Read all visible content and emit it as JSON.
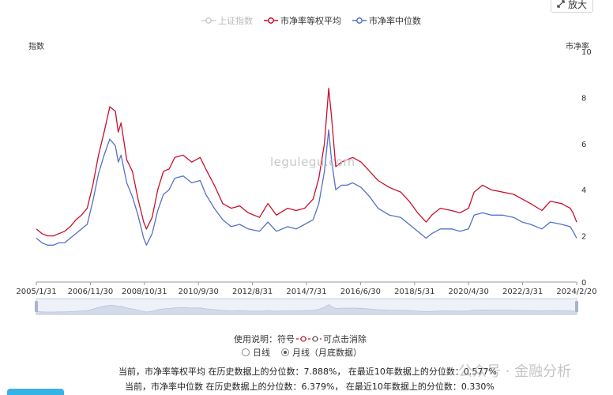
{
  "toolbar": {
    "zoom_label": "放大",
    "zoom_icon": "expand-arrows-icon"
  },
  "legend": [
    {
      "name": "上证指数",
      "color": "#cccccc",
      "active": false
    },
    {
      "name": "市净率等权平均",
      "color": "#c8102e",
      "active": true
    },
    {
      "name": "市净率中位数",
      "color": "#5470c6",
      "active": true
    }
  ],
  "axes": {
    "left_title": "指数",
    "right_title": "市净率"
  },
  "watermark": "legulegu.com",
  "usage": {
    "prefix": "使用说明：符号",
    "suffix": "可点击消除"
  },
  "period": {
    "options": [
      "日线",
      "月线（月底数据）"
    ],
    "selected": 1
  },
  "stats": [
    "当前，市净率等权平均 在历史数据上的分位数：7.888%， 在最近10年数据上的分位数：0.577%",
    "当前，市净率中位数 在历史数据上的分位数：6.379%， 在最近10年数据上的分位数：0.330%"
  ],
  "corner_watermark": "公众号 · 金融分析",
  "chart_data": {
    "type": "line",
    "x_ticks": [
      "2005/1/31",
      "2006/11/30",
      "2008/10/31",
      "2010/9/30",
      "2012/8/31",
      "2014/7/31",
      "2016/6/30",
      "2018/5/31",
      "2020/4/30",
      "2022/3/31",
      "2024/2/20"
    ],
    "y_right": {
      "ticks": [
        0,
        2,
        4,
        6,
        8,
        10
      ],
      "range": [
        0,
        10
      ],
      "label": "市净率"
    },
    "grid": false,
    "legend_position": "top-center",
    "x_range": [
      2005.0,
      2024.13
    ],
    "series": [
      {
        "name": "市净率等权平均",
        "color": "#c8102e",
        "x": [
          2005.0,
          2005.2,
          2005.4,
          2005.6,
          2005.8,
          2006.0,
          2006.2,
          2006.4,
          2006.6,
          2006.8,
          2007.0,
          2007.2,
          2007.4,
          2007.6,
          2007.8,
          2007.9,
          2008.0,
          2008.2,
          2008.4,
          2008.6,
          2008.8,
          2008.9,
          2009.1,
          2009.3,
          2009.5,
          2009.7,
          2009.9,
          2010.2,
          2010.5,
          2010.8,
          2011.0,
          2011.3,
          2011.6,
          2011.9,
          2012.2,
          2012.5,
          2012.9,
          2013.2,
          2013.5,
          2013.9,
          2014.2,
          2014.5,
          2014.8,
          2015.0,
          2015.2,
          2015.35,
          2015.45,
          2015.6,
          2015.8,
          2016.0,
          2016.2,
          2016.5,
          2016.8,
          2017.1,
          2017.5,
          2017.9,
          2018.2,
          2018.5,
          2018.8,
          2019.0,
          2019.3,
          2019.7,
          2020.0,
          2020.3,
          2020.5,
          2020.8,
          2021.1,
          2021.5,
          2021.9,
          2022.2,
          2022.5,
          2022.9,
          2023.2,
          2023.6,
          2023.9,
          2024.0,
          2024.13
        ],
        "y": [
          2.3,
          2.1,
          2.0,
          2.0,
          2.1,
          2.2,
          2.4,
          2.7,
          2.9,
          3.2,
          4.2,
          5.5,
          6.5,
          7.6,
          7.4,
          6.5,
          6.9,
          5.3,
          4.8,
          3.6,
          2.6,
          2.3,
          2.8,
          4.0,
          4.8,
          4.9,
          5.4,
          5.5,
          5.2,
          5.4,
          4.9,
          4.2,
          3.4,
          3.2,
          3.3,
          3.0,
          2.8,
          3.4,
          2.9,
          3.2,
          3.1,
          3.2,
          3.6,
          4.5,
          6.0,
          8.4,
          7.2,
          5.0,
          5.2,
          5.3,
          5.4,
          5.2,
          4.8,
          4.4,
          4.1,
          3.9,
          3.5,
          3.0,
          2.6,
          2.9,
          3.2,
          3.1,
          3.0,
          3.2,
          3.9,
          4.2,
          4.0,
          3.9,
          3.8,
          3.6,
          3.4,
          3.1,
          3.5,
          3.4,
          3.2,
          3.0,
          2.6
        ]
      },
      {
        "name": "市净率中位数",
        "color": "#5470c6",
        "x": [
          2005.0,
          2005.2,
          2005.4,
          2005.6,
          2005.8,
          2006.0,
          2006.2,
          2006.4,
          2006.6,
          2006.8,
          2007.0,
          2007.2,
          2007.4,
          2007.6,
          2007.8,
          2007.9,
          2008.0,
          2008.2,
          2008.4,
          2008.6,
          2008.8,
          2008.9,
          2009.1,
          2009.3,
          2009.5,
          2009.7,
          2009.9,
          2010.2,
          2010.5,
          2010.8,
          2011.0,
          2011.3,
          2011.6,
          2011.9,
          2012.2,
          2012.5,
          2012.9,
          2013.2,
          2013.5,
          2013.9,
          2014.2,
          2014.5,
          2014.8,
          2015.0,
          2015.2,
          2015.35,
          2015.45,
          2015.6,
          2015.8,
          2016.0,
          2016.2,
          2016.5,
          2016.8,
          2017.1,
          2017.5,
          2017.9,
          2018.2,
          2018.5,
          2018.8,
          2019.0,
          2019.3,
          2019.7,
          2020.0,
          2020.3,
          2020.5,
          2020.8,
          2021.1,
          2021.5,
          2021.9,
          2022.2,
          2022.5,
          2022.9,
          2023.2,
          2023.6,
          2023.9,
          2024.0,
          2024.13
        ],
        "y": [
          1.9,
          1.7,
          1.6,
          1.6,
          1.7,
          1.7,
          1.9,
          2.1,
          2.3,
          2.5,
          3.5,
          4.7,
          5.5,
          6.2,
          5.9,
          5.2,
          5.5,
          4.3,
          3.7,
          2.9,
          1.9,
          1.6,
          2.1,
          3.1,
          3.8,
          4.0,
          4.5,
          4.6,
          4.3,
          4.4,
          3.8,
          3.2,
          2.7,
          2.4,
          2.5,
          2.3,
          2.2,
          2.6,
          2.2,
          2.4,
          2.3,
          2.5,
          2.7,
          3.4,
          4.8,
          6.6,
          5.3,
          4.0,
          4.2,
          4.2,
          4.3,
          4.1,
          3.7,
          3.2,
          2.9,
          2.8,
          2.5,
          2.2,
          1.9,
          2.1,
          2.3,
          2.3,
          2.2,
          2.3,
          2.9,
          3.0,
          2.9,
          2.9,
          2.8,
          2.6,
          2.5,
          2.3,
          2.6,
          2.5,
          2.4,
          2.2,
          1.9
        ]
      }
    ]
  }
}
